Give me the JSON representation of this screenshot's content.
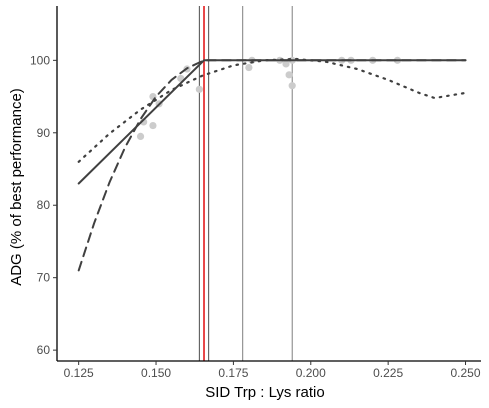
{
  "chart_data": {
    "type": "scatter",
    "xlabel": "SID Trp : Lys ratio",
    "ylabel": "ADG (% of best performance)",
    "xlim": [
      0.118,
      0.255
    ],
    "ylim": [
      58.5,
      107.5
    ],
    "x_ticks": [
      0.125,
      0.15,
      0.175,
      0.2,
      0.225,
      0.25
    ],
    "x_tick_labels": [
      "0.125",
      "0.150",
      "0.175",
      "0.200",
      "0.225",
      "0.250"
    ],
    "y_ticks": [
      60,
      70,
      80,
      90,
      100
    ],
    "y_tick_labels": [
      "60",
      "70",
      "80",
      "90",
      "100"
    ],
    "grid": false,
    "points": [
      {
        "x": 0.145,
        "y": 89.5
      },
      {
        "x": 0.146,
        "y": 91.5
      },
      {
        "x": 0.149,
        "y": 91.0
      },
      {
        "x": 0.149,
        "y": 95.0
      },
      {
        "x": 0.151,
        "y": 94.0
      },
      {
        "x": 0.158,
        "y": 97.5
      },
      {
        "x": 0.16,
        "y": 98.8
      },
      {
        "x": 0.164,
        "y": 96.0
      },
      {
        "x": 0.18,
        "y": 99.0
      },
      {
        "x": 0.181,
        "y": 100.0
      },
      {
        "x": 0.19,
        "y": 100.0
      },
      {
        "x": 0.192,
        "y": 99.5
      },
      {
        "x": 0.193,
        "y": 98.0
      },
      {
        "x": 0.194,
        "y": 96.5
      },
      {
        "x": 0.194,
        "y": 100.0
      },
      {
        "x": 0.21,
        "y": 100.0
      },
      {
        "x": 0.213,
        "y": 100.0
      },
      {
        "x": 0.22,
        "y": 100.0
      },
      {
        "x": 0.228,
        "y": 100.0
      }
    ],
    "series": [
      {
        "style": "solid",
        "values": [
          [
            0.125,
            83.0
          ],
          [
            0.1655,
            100.0
          ],
          [
            0.25,
            100.0
          ]
        ]
      },
      {
        "style": "dashed",
        "values": [
          [
            0.125,
            71.0
          ],
          [
            0.13,
            77.5
          ],
          [
            0.135,
            83.2
          ],
          [
            0.14,
            88.0
          ],
          [
            0.145,
            91.9
          ],
          [
            0.15,
            95.0
          ],
          [
            0.155,
            97.3
          ],
          [
            0.16,
            98.9
          ],
          [
            0.1655,
            100.0
          ],
          [
            0.25,
            100.0
          ]
        ]
      },
      {
        "style": "dotted",
        "values": [
          [
            0.125,
            86.0
          ],
          [
            0.135,
            89.9
          ],
          [
            0.145,
            93.2
          ],
          [
            0.155,
            95.9
          ],
          [
            0.165,
            97.9
          ],
          [
            0.175,
            99.3
          ],
          [
            0.185,
            100.0
          ],
          [
            0.195,
            100.2
          ],
          [
            0.205,
            99.8
          ],
          [
            0.215,
            98.8
          ],
          [
            0.225,
            97.3
          ],
          [
            0.235,
            95.5
          ],
          [
            0.24,
            94.8
          ],
          [
            0.25,
            95.5
          ]
        ]
      }
    ],
    "vlines": [
      {
        "x": 0.164,
        "color": "#4d4d4d"
      },
      {
        "x": 0.1655,
        "color": "#e31a1c"
      },
      {
        "x": 0.167,
        "color": "#4d4d4d"
      },
      {
        "x": 0.178,
        "color": "#808080"
      },
      {
        "x": 0.194,
        "color": "#808080"
      }
    ],
    "colors": {
      "points": "#cccccc",
      "lines": "#404040",
      "axis": "#000000"
    }
  }
}
